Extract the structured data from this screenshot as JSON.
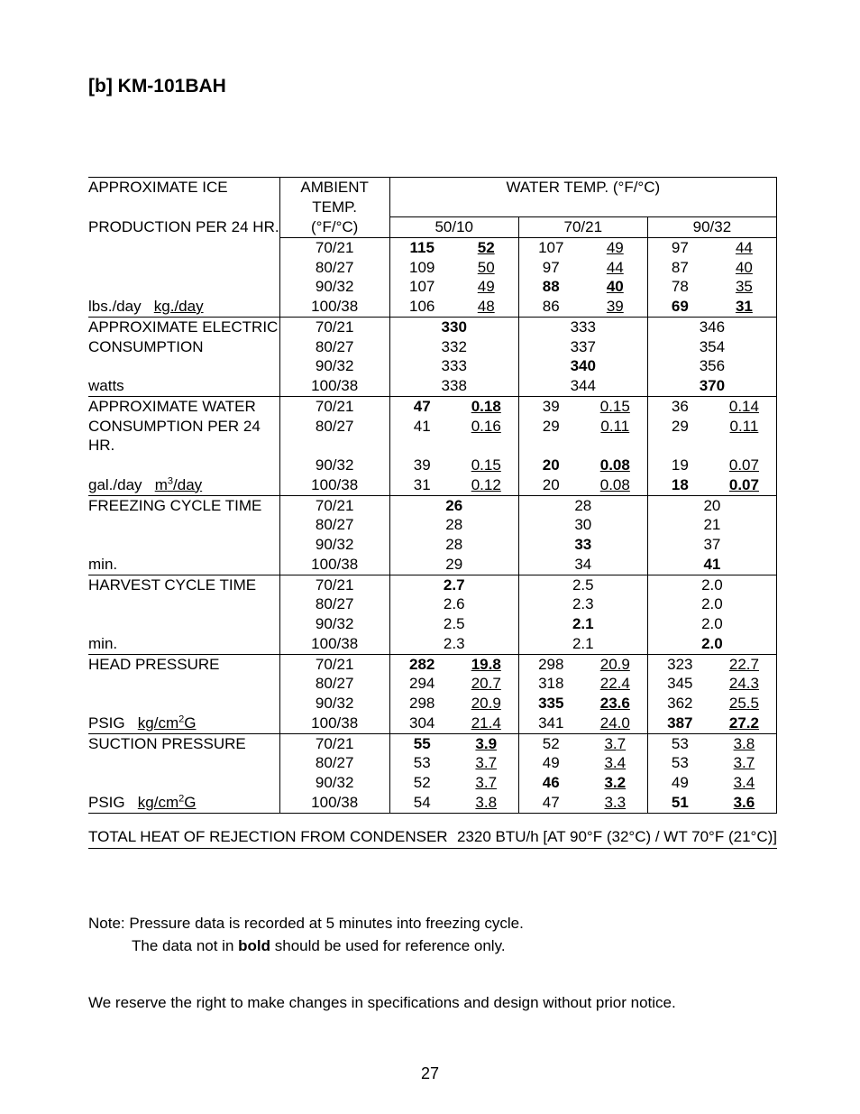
{
  "title": "[b] KM-101BAH",
  "header": {
    "ambient": "AMBIENT TEMP.",
    "ambient_unit": "(°F/°C)",
    "water": "WATER TEMP. (°F/°C)",
    "wt_cols": [
      "50/10",
      "70/21",
      "90/32"
    ]
  },
  "ambient_rows": [
    "70/21",
    "80/27",
    "90/32",
    "100/38"
  ],
  "sections": [
    {
      "label_lines": [
        "APPROXIMATE ICE",
        "PRODUCTION PER 24 HR."
      ],
      "unit_pair": [
        "lbs./day",
        "kg./day"
      ],
      "unit_sup": null,
      "dual": true,
      "rows": [
        {
          "c1": [
            "115",
            "52"
          ],
          "c2": [
            "107",
            "49"
          ],
          "c3": [
            "97",
            "44"
          ],
          "bold": [
            1,
            0,
            0
          ]
        },
        {
          "c1": [
            "109",
            "50"
          ],
          "c2": [
            "97",
            "44"
          ],
          "c3": [
            "87",
            "40"
          ],
          "bold": [
            0,
            0,
            0
          ]
        },
        {
          "c1": [
            "107",
            "49"
          ],
          "c2": [
            "88",
            "40"
          ],
          "c3": [
            "78",
            "35"
          ],
          "bold": [
            0,
            1,
            0
          ]
        },
        {
          "c1": [
            "106",
            "48"
          ],
          "c2": [
            "86",
            "39"
          ],
          "c3": [
            "69",
            "31"
          ],
          "bold": [
            0,
            0,
            1
          ]
        }
      ]
    },
    {
      "label_lines": [
        "APPROXIMATE ELECTRIC",
        "CONSUMPTION"
      ],
      "unit_pair": [
        "watts"
      ],
      "unit_sup": null,
      "dual": false,
      "rows": [
        {
          "c1": [
            "330"
          ],
          "c2": [
            "333"
          ],
          "c3": [
            "346"
          ],
          "bold": [
            1,
            0,
            0
          ]
        },
        {
          "c1": [
            "332"
          ],
          "c2": [
            "337"
          ],
          "c3": [
            "354"
          ],
          "bold": [
            0,
            0,
            0
          ]
        },
        {
          "c1": [
            "333"
          ],
          "c2": [
            "340"
          ],
          "c3": [
            "356"
          ],
          "bold": [
            0,
            1,
            0
          ]
        },
        {
          "c1": [
            "338"
          ],
          "c2": [
            "344"
          ],
          "c3": [
            "370"
          ],
          "bold": [
            0,
            0,
            1
          ]
        }
      ]
    },
    {
      "label_lines": [
        "APPROXIMATE WATER",
        "CONSUMPTION PER 24 HR."
      ],
      "unit_pair": [
        "gal./day",
        "m3/day"
      ],
      "unit_sup": 3,
      "dual": true,
      "rows": [
        {
          "c1": [
            "47",
            "0.18"
          ],
          "c2": [
            "39",
            "0.15"
          ],
          "c3": [
            "36",
            "0.14"
          ],
          "bold": [
            1,
            0,
            0
          ]
        },
        {
          "c1": [
            "41",
            "0.16"
          ],
          "c2": [
            "29",
            "0.11"
          ],
          "c3": [
            "29",
            "0.11"
          ],
          "bold": [
            0,
            0,
            0
          ]
        },
        {
          "c1": [
            "39",
            "0.15"
          ],
          "c2": [
            "20",
            "0.08"
          ],
          "c3": [
            "19",
            "0.07"
          ],
          "bold": [
            0,
            1,
            0
          ]
        },
        {
          "c1": [
            "31",
            "0.12"
          ],
          "c2": [
            "20",
            "0.08"
          ],
          "c3": [
            "18",
            "0.07"
          ],
          "bold": [
            0,
            0,
            1
          ]
        }
      ]
    },
    {
      "label_lines": [
        "FREEZING CYCLE TIME"
      ],
      "unit_pair": [
        "min."
      ],
      "unit_sup": null,
      "dual": false,
      "rows": [
        {
          "c1": [
            "26"
          ],
          "c2": [
            "28"
          ],
          "c3": [
            "20"
          ],
          "bold": [
            1,
            0,
            0
          ]
        },
        {
          "c1": [
            "28"
          ],
          "c2": [
            "30"
          ],
          "c3": [
            "21"
          ],
          "bold": [
            0,
            0,
            0
          ]
        },
        {
          "c1": [
            "28"
          ],
          "c2": [
            "33"
          ],
          "c3": [
            "37"
          ],
          "bold": [
            0,
            1,
            0
          ]
        },
        {
          "c1": [
            "29"
          ],
          "c2": [
            "34"
          ],
          "c3": [
            "41"
          ],
          "bold": [
            0,
            0,
            1
          ]
        }
      ]
    },
    {
      "label_lines": [
        "HARVEST CYCLE TIME"
      ],
      "unit_pair": [
        "min."
      ],
      "unit_sup": null,
      "dual": false,
      "rows": [
        {
          "c1": [
            "2.7"
          ],
          "c2": [
            "2.5"
          ],
          "c3": [
            "2.0"
          ],
          "bold": [
            1,
            0,
            0
          ]
        },
        {
          "c1": [
            "2.6"
          ],
          "c2": [
            "2.3"
          ],
          "c3": [
            "2.0"
          ],
          "bold": [
            0,
            0,
            0
          ]
        },
        {
          "c1": [
            "2.5"
          ],
          "c2": [
            "2.1"
          ],
          "c3": [
            "2.0"
          ],
          "bold": [
            0,
            1,
            0
          ]
        },
        {
          "c1": [
            "2.3"
          ],
          "c2": [
            "2.1"
          ],
          "c3": [
            "2.0"
          ],
          "bold": [
            0,
            0,
            1
          ]
        }
      ]
    },
    {
      "label_lines": [
        "HEAD PRESSURE"
      ],
      "unit_pair": [
        "PSIG",
        "kg/cm2G"
      ],
      "unit_sup": 2,
      "dual": true,
      "rows": [
        {
          "c1": [
            "282",
            "19.8"
          ],
          "c2": [
            "298",
            "20.9"
          ],
          "c3": [
            "323",
            "22.7"
          ],
          "bold": [
            1,
            0,
            0
          ]
        },
        {
          "c1": [
            "294",
            "20.7"
          ],
          "c2": [
            "318",
            "22.4"
          ],
          "c3": [
            "345",
            "24.3"
          ],
          "bold": [
            0,
            0,
            0
          ]
        },
        {
          "c1": [
            "298",
            "20.9"
          ],
          "c2": [
            "335",
            "23.6"
          ],
          "c3": [
            "362",
            "25.5"
          ],
          "bold": [
            0,
            1,
            0
          ]
        },
        {
          "c1": [
            "304",
            "21.4"
          ],
          "c2": [
            "341",
            "24.0"
          ],
          "c3": [
            "387",
            "27.2"
          ],
          "bold": [
            0,
            0,
            1
          ]
        }
      ]
    },
    {
      "label_lines": [
        "SUCTION PRESSURE"
      ],
      "unit_pair": [
        "PSIG",
        "kg/cm2G"
      ],
      "unit_sup": 2,
      "dual": true,
      "rows": [
        {
          "c1": [
            "55",
            "3.9"
          ],
          "c2": [
            "52",
            "3.7"
          ],
          "c3": [
            "53",
            "3.8"
          ],
          "bold": [
            1,
            0,
            0
          ]
        },
        {
          "c1": [
            "53",
            "3.7"
          ],
          "c2": [
            "49",
            "3.4"
          ],
          "c3": [
            "53",
            "3.7"
          ],
          "bold": [
            0,
            0,
            0
          ]
        },
        {
          "c1": [
            "52",
            "3.7"
          ],
          "c2": [
            "46",
            "3.2"
          ],
          "c3": [
            "49",
            "3.4"
          ],
          "bold": [
            0,
            1,
            0
          ]
        },
        {
          "c1": [
            "54",
            "3.8"
          ],
          "c2": [
            "47",
            "3.3"
          ],
          "c3": [
            "51",
            "3.6"
          ],
          "bold": [
            0,
            0,
            1
          ]
        }
      ]
    }
  ],
  "heat": {
    "label": "TOTAL HEAT OF REJECTION FROM CONDENSER",
    "value": "2320  BTU/h  [AT 90°F (32°C) / WT 70°F (21°C)]"
  },
  "notes": {
    "l1": "Note:  Pressure data is recorded at 5 minutes into freezing cycle.",
    "l2a": "The data not in ",
    "l2b": "bold",
    "l2c": " should be used for reference only."
  },
  "reserve": "We reserve the right to make changes in specifications and design without prior notice.",
  "page_number": "27"
}
